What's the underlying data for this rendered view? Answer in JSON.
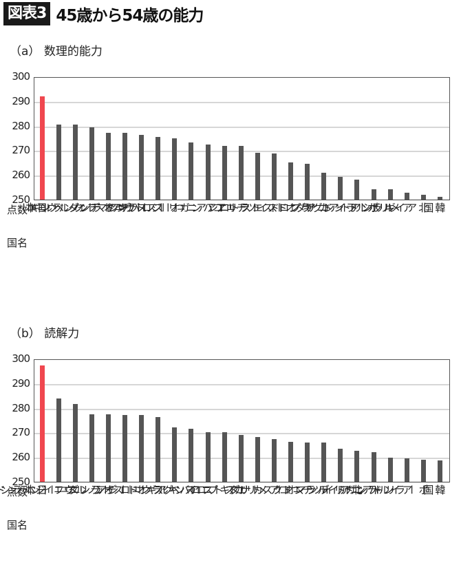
{
  "header": {
    "badge": "図表3",
    "title": "45歳から54歳の能力"
  },
  "axis_labels": {
    "score": "点数",
    "country": "国名"
  },
  "colors": {
    "highlight": "#f0474f",
    "bar": "#555555",
    "grid": "#d6d6d6"
  },
  "chart_data": [
    {
      "type": "bar",
      "title": "（a） 数理的能力",
      "xlabel": "国名",
      "ylabel": "点数",
      "ylim": [
        250,
        300
      ],
      "yticks": [
        300,
        290,
        280,
        270,
        260,
        250
      ],
      "grid": true,
      "highlight_index": 0,
      "categories": [
        "日本",
        "ベルギー",
        "ノルウェー",
        "フィンランド",
        "オランダ",
        "デンマーク",
        "スウェーデン",
        "スロバキア",
        "オーストリア",
        "ニュージーランド",
        "ハンガリー",
        "ロシア",
        "チェコ",
        "エストニア",
        "ドイツ",
        "オーストラリア",
        "キプロス",
        "カナダ",
        "イングランド",
        "リトアニア",
        "ポーランド",
        "ギリシア",
        "アメリカ",
        "北アイルランド",
        "韓国"
      ],
      "values": [
        291.8,
        280.4,
        280.4,
        279.3,
        277.2,
        277.2,
        276.3,
        275.4,
        274.8,
        273.1,
        272.3,
        271.8,
        271.8,
        269.1,
        268.6,
        265.0,
        264.6,
        260.9,
        259.2,
        258.2,
        254.1,
        254.1,
        252.9,
        251.9,
        251.1
      ]
    },
    {
      "type": "bar",
      "title": "（b） 読解力",
      "xlabel": "国名",
      "ylabel": "点数",
      "ylim": [
        250,
        300
      ],
      "yticks": [
        300,
        290,
        280,
        270,
        260,
        250
      ],
      "grid": true,
      "highlight_index": 0,
      "categories": [
        "日本",
        "フィンランド",
        "ニュージーランド",
        "ノルウェー",
        "オランダ",
        "ロシア",
        "オーストラリア",
        "スウェーデン",
        "ベルギー",
        "イングランド",
        "スロバキア",
        "キプロス",
        "エストニア",
        "カナダ",
        "アメリカ",
        "オーストリア",
        "チェコ",
        "デンマーク",
        "ドイツ",
        "北アイルランド",
        "ハンガリー",
        "リトアニア",
        "アイルランド",
        "ポーランド",
        "韓国"
      ],
      "values": [
        297.2,
        283.7,
        281.5,
        277.5,
        277.3,
        277.1,
        277.0,
        276.3,
        272.2,
        271.6,
        270.1,
        270.1,
        268.9,
        268.1,
        267.2,
        266.2,
        265.9,
        265.8,
        263.5,
        262.7,
        262.1,
        259.9,
        259.4,
        259.0,
        258.6
      ]
    }
  ]
}
